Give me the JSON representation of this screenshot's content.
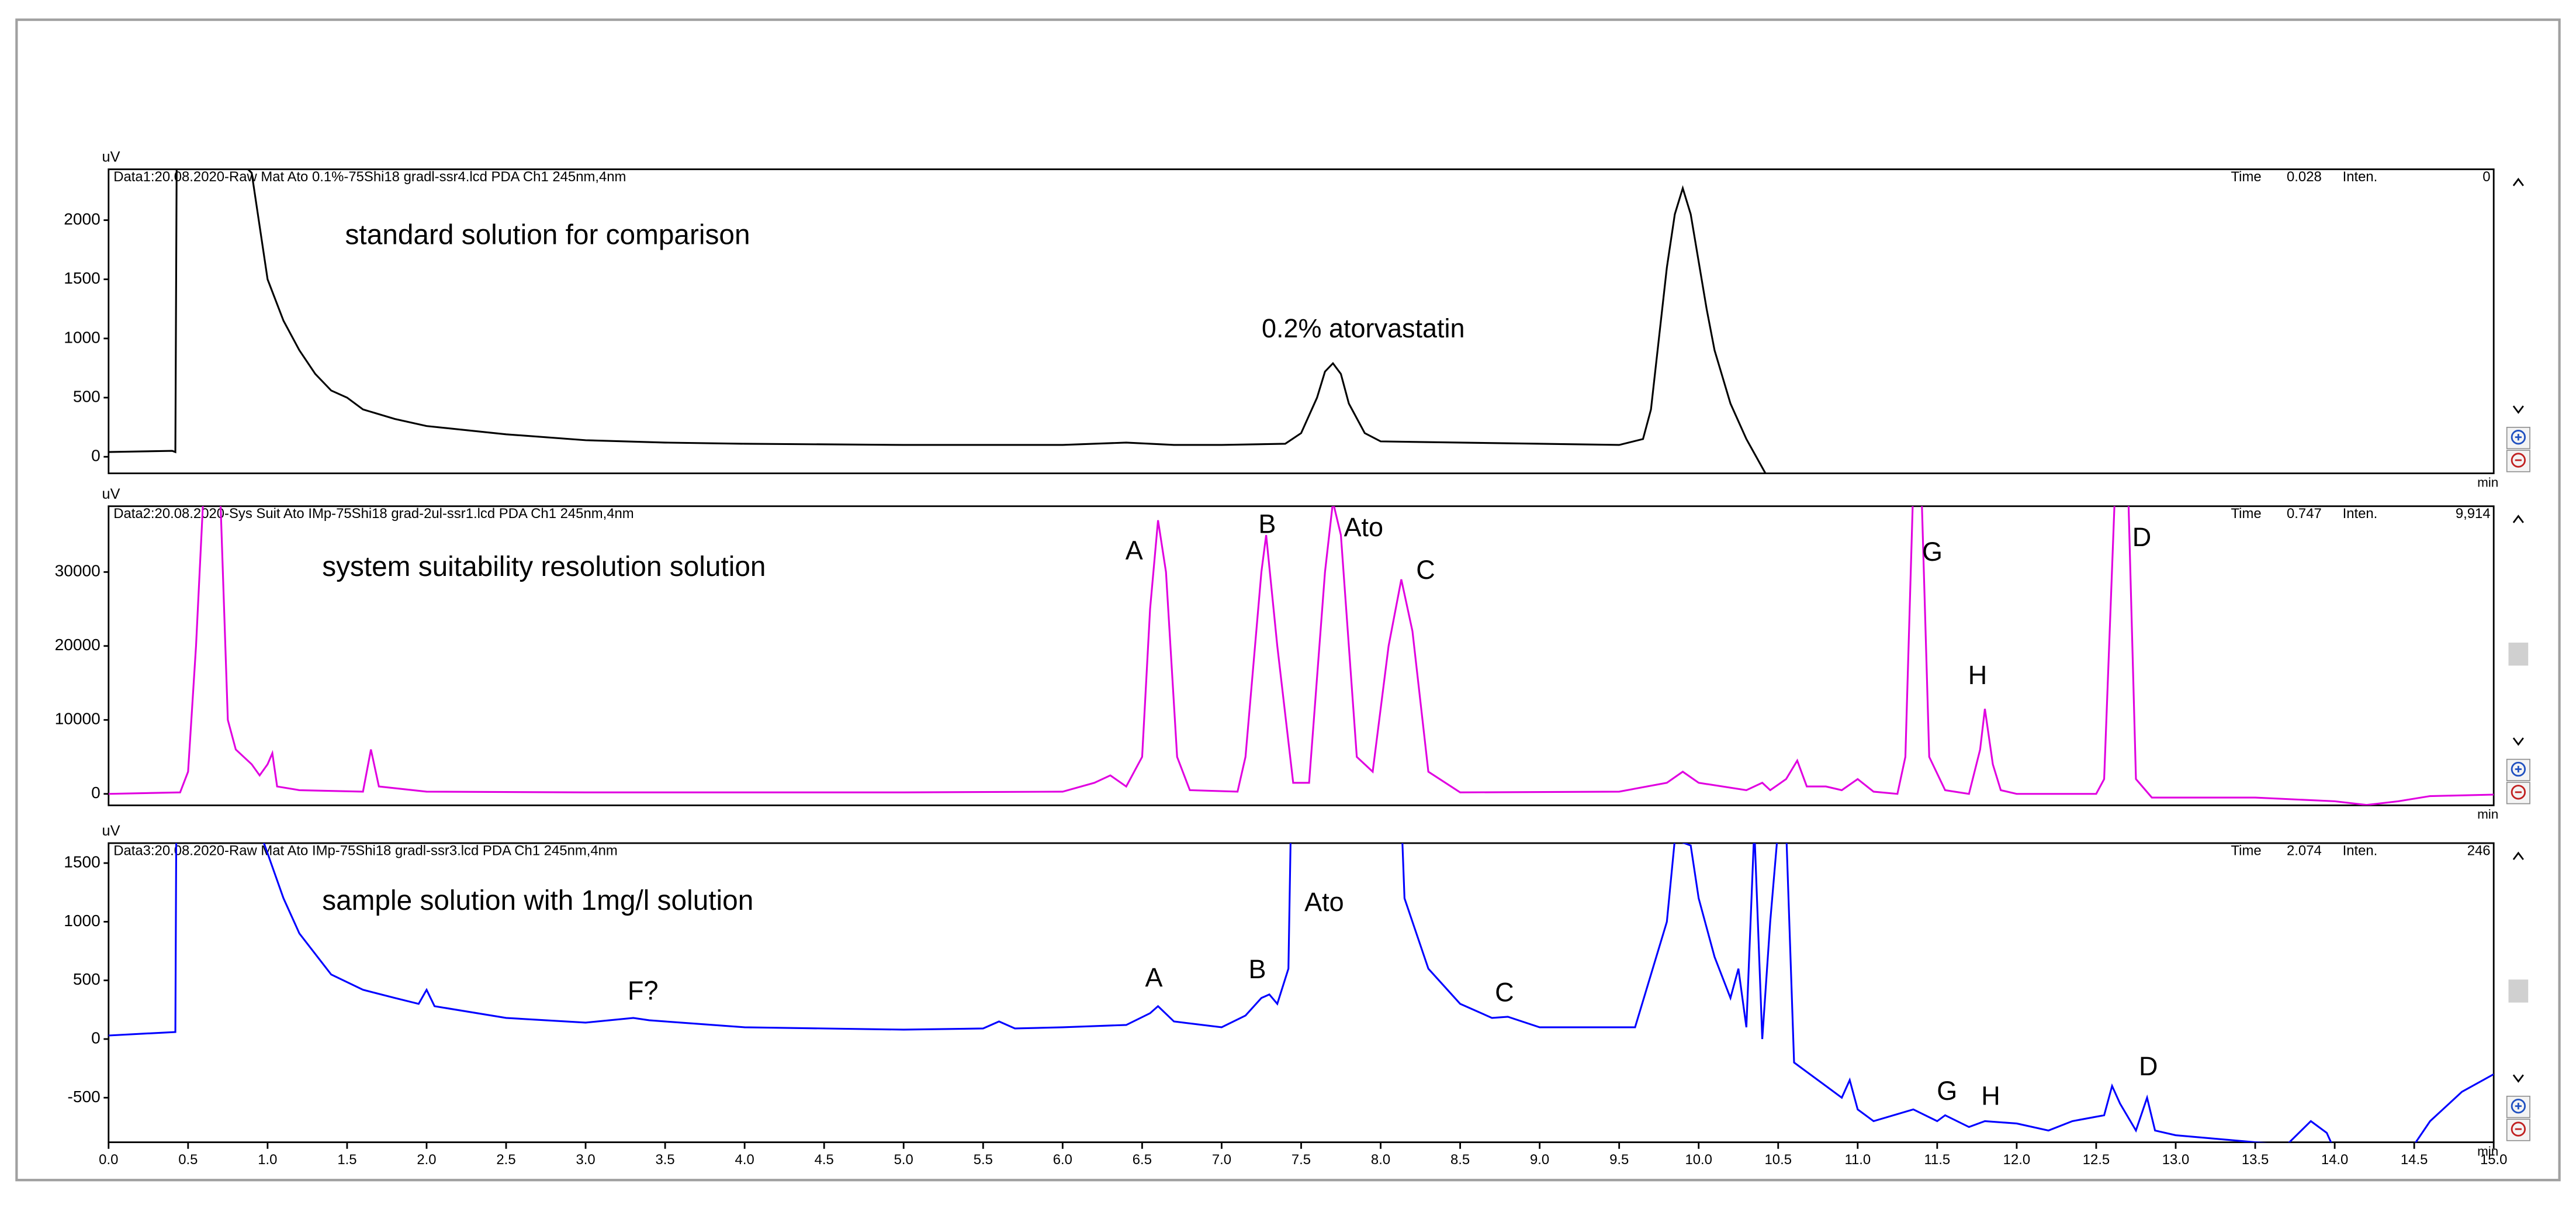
{
  "chart_data": [
    {
      "type": "line",
      "title": "Data1:20.08.2020-Raw Mat Ato 0.1%-75Shi18 gradl-ssr4.lcd PDA Ch1 245nm,4nm",
      "readout": [
        "Time",
        "0.028",
        "Inten.",
        "0"
      ],
      "y_unit": "uV",
      "x_unit": "min",
      "color": "#000000",
      "annotations": [
        "standard solution for comparison",
        "0.2% atorvastatin"
      ],
      "xlim": [
        0,
        15
      ],
      "ylim": [
        -140,
        2430
      ],
      "yticks": [
        0,
        500,
        1000,
        1500,
        2000
      ],
      "x": [
        0,
        0.2,
        0.4,
        0.42,
        0.43,
        0.9,
        1.0,
        1.1,
        1.2,
        1.3,
        1.4,
        1.5,
        1.6,
        1.8,
        2.0,
        2.5,
        3.0,
        3.5,
        4.0,
        5.0,
        6.0,
        6.4,
        6.7,
        7.0,
        7.4,
        7.5,
        7.6,
        7.65,
        7.7,
        7.75,
        7.8,
        7.9,
        8.0,
        9.0,
        9.5,
        9.65,
        9.7,
        9.75,
        9.8,
        9.85,
        9.9,
        9.95,
        10.0,
        10.05,
        10.1,
        10.2,
        10.3,
        10.42
      ],
      "values": [
        40,
        45,
        50,
        40,
        3000,
        2400,
        1500,
        1150,
        900,
        700,
        560,
        500,
        400,
        320,
        260,
        190,
        140,
        120,
        110,
        100,
        100,
        120,
        100,
        100,
        110,
        200,
        500,
        720,
        790,
        700,
        450,
        200,
        130,
        110,
        100,
        150,
        400,
        1000,
        1600,
        2050,
        2270,
        2050,
        1650,
        1250,
        900,
        450,
        150,
        -140
      ]
    },
    {
      "type": "line",
      "title": "Data2:20.08.2020-Sys Suit Ato IMp-75Shi18 grad-2ul-ssr1.lcd PDA Ch1 245nm,4nm",
      "readout": [
        "Time",
        "0.747",
        "Inten.",
        "9,914"
      ],
      "y_unit": "uV",
      "x_unit": "min",
      "color": "#e000e0",
      "annotations": [
        "system suitability resolution solution",
        "A",
        "B",
        "Ato",
        "C",
        "G",
        "H",
        "D"
      ],
      "xlim": [
        0,
        15
      ],
      "ylim": [
        -1550,
        38900
      ],
      "yticks": [
        0,
        10000,
        20000,
        30000
      ],
      "x": [
        0,
        0.45,
        0.5,
        0.55,
        0.6,
        0.7,
        0.75,
        0.8,
        0.9,
        0.95,
        1.0,
        1.03,
        1.06,
        1.2,
        1.6,
        1.65,
        1.7,
        2.0,
        3.0,
        4.0,
        5.0,
        6.0,
        6.2,
        6.3,
        6.4,
        6.5,
        6.55,
        6.6,
        6.65,
        6.72,
        6.8,
        7.1,
        7.15,
        7.25,
        7.28,
        7.35,
        7.45,
        7.55,
        7.65,
        7.7,
        7.75,
        7.85,
        7.95,
        8.05,
        8.13,
        8.2,
        8.3,
        8.5,
        9.5,
        9.8,
        9.9,
        10.0,
        10.3,
        10.4,
        10.45,
        10.55,
        10.62,
        10.68,
        10.8,
        10.9,
        11.0,
        11.1,
        11.25,
        11.3,
        11.35,
        11.4,
        11.45,
        11.55,
        11.7,
        11.77,
        11.8,
        11.85,
        11.9,
        12.0,
        12.5,
        12.55,
        12.62,
        12.7,
        12.75,
        12.85,
        13.5,
        14.0,
        14.2,
        14.4,
        14.6,
        15.0
      ],
      "values": [
        0,
        200,
        3000,
        20000,
        42000,
        42000,
        10000,
        6000,
        4000,
        2500,
        4000,
        5500,
        1000,
        500,
        300,
        6000,
        1000,
        300,
        200,
        200,
        200,
        300,
        1500,
        2500,
        1000,
        5000,
        25000,
        37000,
        30000,
        5000,
        500,
        300,
        5000,
        30000,
        35000,
        20000,
        1500,
        1500,
        30000,
        39500,
        35000,
        5000,
        3000,
        20000,
        29000,
        22000,
        3000,
        200,
        300,
        1500,
        3000,
        1500,
        500,
        1500,
        500,
        2000,
        4500,
        1000,
        1000,
        500,
        2000,
        300,
        0,
        5000,
        42000,
        42000,
        5000,
        500,
        0,
        6000,
        11500,
        4000,
        500,
        0,
        0,
        2000,
        42000,
        42000,
        2000,
        -500,
        -500,
        -1000,
        -1500,
        -1000,
        -300,
        -100
      ]
    },
    {
      "type": "line",
      "title": "Data3:20.08.2020-Raw Mat Ato IMp-75Shi18 gradl-ssr3.lcd PDA Ch1 245nm,4nm",
      "readout": [
        "Time",
        "2.074",
        "Inten.",
        "246"
      ],
      "y_unit": "uV",
      "x_unit": "min",
      "color": "#0000ff",
      "annotations": [
        "sample solution with 1mg/l solution",
        "F?",
        "A",
        "B",
        "Ato",
        "C",
        "G",
        "H",
        "D"
      ],
      "xlim": [
        0,
        15
      ],
      "ylim": [
        -880,
        1670
      ],
      "yticks": [
        -500,
        0,
        500,
        1000,
        1500
      ],
      "xticks": [
        {
          "value": 0,
          "label": "0.0"
        },
        {
          "value": 0.5,
          "label": "0.5"
        },
        {
          "value": 1,
          "label": "1.0"
        },
        {
          "value": 1.5,
          "label": "1.5"
        },
        {
          "value": 2,
          "label": "2.0"
        },
        {
          "value": 2.5,
          "label": "2.5"
        },
        {
          "value": 3,
          "label": "3.0"
        },
        {
          "value": 3.5,
          "label": "3.5"
        },
        {
          "value": 4,
          "label": "4.0"
        },
        {
          "value": 4.5,
          "label": "4.5"
        },
        {
          "value": 5,
          "label": "5.0"
        },
        {
          "value": 5.5,
          "label": "5.5"
        },
        {
          "value": 6,
          "label": "6.0"
        },
        {
          "value": 6.5,
          "label": "6.5"
        },
        {
          "value": 7,
          "label": "7.0"
        },
        {
          "value": 7.5,
          "label": "7.5"
        },
        {
          "value": 8,
          "label": "8.0"
        },
        {
          "value": 8.5,
          "label": "8.5"
        },
        {
          "value": 9,
          "label": "9.0"
        },
        {
          "value": 9.5,
          "label": "9.5"
        },
        {
          "value": 10,
          "label": "10.0"
        },
        {
          "value": 10.5,
          "label": "10.5"
        },
        {
          "value": 11,
          "label": "11.0"
        },
        {
          "value": 11.5,
          "label": "11.5"
        },
        {
          "value": 12,
          "label": "12.0"
        },
        {
          "value": 12.5,
          "label": "12.5"
        },
        {
          "value": 13,
          "label": "13.0"
        },
        {
          "value": 13.5,
          "label": "13.5"
        },
        {
          "value": 14,
          "label": "14.0"
        },
        {
          "value": 14.5,
          "label": "14.5"
        },
        {
          "value": 15,
          "label": "15.0"
        }
      ],
      "x": [
        0,
        0.42,
        0.43,
        0.98,
        1.1,
        1.2,
        1.4,
        1.6,
        1.8,
        1.95,
        2.0,
        2.05,
        2.5,
        3.0,
        3.3,
        3.4,
        3.5,
        4.0,
        5.0,
        5.5,
        5.6,
        5.7,
        6.0,
        6.4,
        6.55,
        6.6,
        6.7,
        7.0,
        7.15,
        7.25,
        7.3,
        7.35,
        7.42,
        7.45,
        8.1,
        8.15,
        8.3,
        8.5,
        8.7,
        8.8,
        9.0,
        9.6,
        9.8,
        9.85,
        9.95,
        10.0,
        10.1,
        10.2,
        10.25,
        10.3,
        10.35,
        10.4,
        10.45,
        10.5,
        10.55,
        10.6,
        10.7,
        10.8,
        10.9,
        10.95,
        11.0,
        11.1,
        11.35,
        11.5,
        11.55,
        11.7,
        11.8,
        12.0,
        12.2,
        12.35,
        12.55,
        12.6,
        12.65,
        12.75,
        12.82,
        12.87,
        13.0,
        13.5,
        13.7,
        13.85,
        13.95,
        14.0,
        14.3,
        14.45,
        14.6,
        14.8,
        15.0
      ],
      "values": [
        30,
        60,
        3000,
        1660,
        1200,
        900,
        550,
        420,
        350,
        300,
        420,
        280,
        180,
        140,
        180,
        160,
        150,
        100,
        80,
        90,
        150,
        90,
        100,
        120,
        220,
        280,
        150,
        100,
        200,
        350,
        380,
        300,
        600,
        3000,
        3000,
        1200,
        600,
        300,
        180,
        190,
        100,
        100,
        1000,
        1700,
        1650,
        1200,
        700,
        350,
        600,
        100,
        1800,
        0,
        1000,
        1800,
        1800,
        -200,
        -300,
        -400,
        -500,
        -350,
        -600,
        -700,
        -600,
        -700,
        -650,
        -750,
        -700,
        -720,
        -780,
        -700,
        -650,
        -400,
        -550,
        -780,
        -500,
        -780,
        -820,
        -880,
        -900,
        -700,
        -800,
        -950,
        -1200,
        -1000,
        -700,
        -450,
        -300
      ]
    }
  ]
}
